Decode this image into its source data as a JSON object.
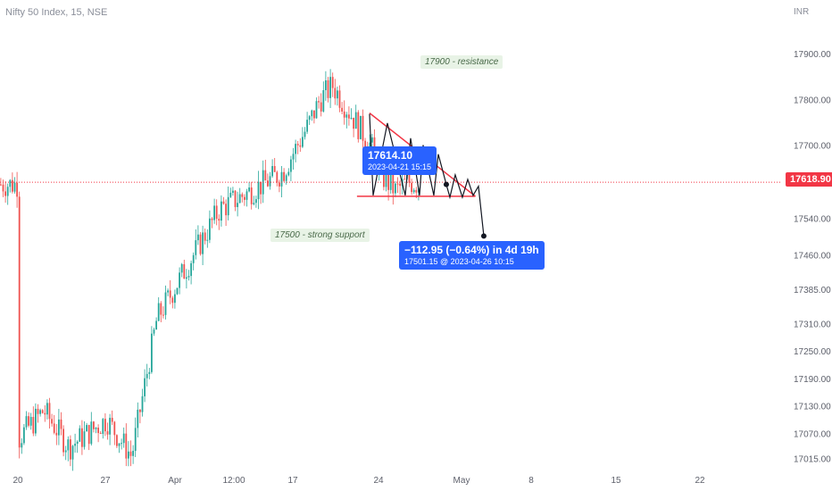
{
  "header": {
    "symbol_title": "Nifty 50 Index, 15, NSE",
    "currency": "INR"
  },
  "chart_data": {
    "type": "candlestick",
    "title": "Nifty 50 Index, 15, NSE",
    "y_axis": {
      "ticks": [
        "17900.00",
        "17800.00",
        "17700.00",
        "17540.00",
        "17460.00",
        "17385.00",
        "17310.00",
        "17250.00",
        "17190.00",
        "17130.00",
        "17070.00",
        "17015.00"
      ],
      "range": [
        16990,
        17970
      ]
    },
    "x_axis": {
      "ticks": [
        "20",
        "27",
        "Apr",
        "12:00",
        "17",
        "24",
        "May",
        "8",
        "15",
        "22"
      ]
    },
    "current_price": "17618.90",
    "price_path": [
      {
        "t": "2023-03-20",
        "p": 17060
      },
      {
        "t": "2023-03-22",
        "p": 17120
      },
      {
        "t": "2023-03-24",
        "p": 17040
      },
      {
        "t": "2023-03-27",
        "p": 17100
      },
      {
        "t": "2023-03-29",
        "p": 17020
      },
      {
        "t": "2023-03-31",
        "p": 17320
      },
      {
        "t": "2023-04-05",
        "p": 17560
      },
      {
        "t": "2023-04-10",
        "p": 17640
      },
      {
        "t": "2023-04-12",
        "p": 17740
      },
      {
        "t": "2023-04-13",
        "p": 17800
      },
      {
        "t": "2023-04-14",
        "p": 17830
      },
      {
        "t": "2023-04-17",
        "p": 17700
      },
      {
        "t": "2023-04-18",
        "p": 17630
      },
      {
        "t": "2023-04-19",
        "p": 17600
      },
      {
        "t": "2023-04-20",
        "p": 17620
      },
      {
        "t": "2023-04-21",
        "p": 17614.1
      }
    ],
    "pattern_lines": [
      {
        "name": "descending-resistance",
        "from": {
          "t": "2023-04-17",
          "p": 17770
        },
        "to": {
          "t": "2023-04-25",
          "p": 17588
        }
      },
      {
        "name": "horizontal-support",
        "from": {
          "t": "2023-04-16",
          "p": 17588
        },
        "to": {
          "t": "2023-04-25",
          "p": 17588
        }
      }
    ],
    "projection_path": [
      {
        "t": "2023-04-17",
        "p": 17768
      },
      {
        "t": "2023-04-17",
        "p": 17590
      },
      {
        "t": "2023-04-18",
        "p": 17748
      },
      {
        "t": "2023-04-19",
        "p": 17590
      },
      {
        "t": "2023-04-19",
        "p": 17715
      },
      {
        "t": "2023-04-20",
        "p": 17590
      },
      {
        "t": "2023-04-20",
        "p": 17700
      },
      {
        "t": "2023-04-21",
        "p": 17590
      },
      {
        "t": "2023-04-21",
        "p": 17680
      },
      {
        "t": "2023-04-24",
        "p": 17614
      },
      {
        "t": "2023-04-24",
        "p": 17586
      },
      {
        "t": "2023-04-24",
        "p": 17635
      },
      {
        "t": "2023-04-25",
        "p": 17586
      },
      {
        "t": "2023-04-25",
        "p": 17625
      },
      {
        "t": "2023-04-26",
        "p": 17590
      },
      {
        "t": "2023-04-26",
        "p": 17610
      },
      {
        "t": "2023-04-26",
        "p": 17501.15
      }
    ],
    "annotations": {
      "resistance": "17900 - resistance",
      "support": "17500 - strong support",
      "point_price": "17614.10",
      "point_time": "2023-04-21 15:15",
      "move_summary": "−112.95 (−0.64%) in 4d 19h",
      "move_target": "17501.15 @ 2023-04-26  10:15"
    },
    "grid": false,
    "colors": {
      "up": "#26a69a",
      "down": "#ef5350",
      "pattern": "#f23645",
      "callout": "#2962ff",
      "note_bg": "#e8f3e6",
      "price_line": "#f23645"
    }
  }
}
